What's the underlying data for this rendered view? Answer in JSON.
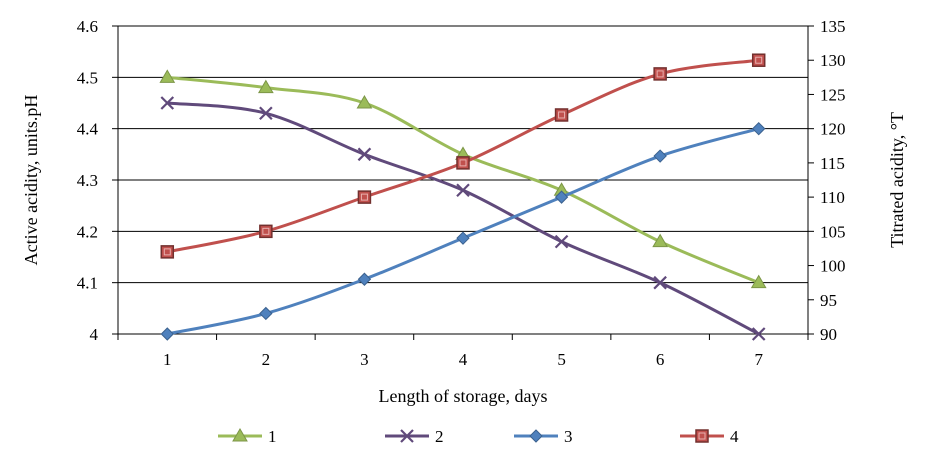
{
  "chart_data": {
    "type": "line",
    "xlabel": "Length of storage, days",
    "ylabel": "Active acidity, units.pH",
    "y2label": "Titrated acidity, °T",
    "categories": [
      "1",
      "2",
      "3",
      "4",
      "5",
      "6",
      "7"
    ],
    "ylim": [
      4,
      4.6
    ],
    "y_ticks": [
      "4",
      "4.1",
      "4.2",
      "4.3",
      "4.4",
      "4.5",
      "4.6"
    ],
    "y2lim": [
      90,
      135
    ],
    "y2_ticks": [
      "90",
      "95",
      "100",
      "105",
      "110",
      "115",
      "120",
      "125",
      "130",
      "135"
    ],
    "grid": true,
    "legend_position": "bottom",
    "series": [
      {
        "name": "1",
        "axis": "left",
        "color": "#9BBB59",
        "marker": "triangle",
        "values": [
          4.5,
          4.48,
          4.45,
          4.35,
          4.28,
          4.18,
          4.1
        ]
      },
      {
        "name": "2",
        "axis": "left",
        "color": "#604A7B",
        "marker": "x",
        "values": [
          4.45,
          4.43,
          4.35,
          4.28,
          4.18,
          4.1,
          4.0
        ]
      },
      {
        "name": "3",
        "axis": "right",
        "color": "#4F81BD",
        "marker": "diamond",
        "values": [
          90,
          93,
          98,
          104,
          110,
          116,
          120
        ]
      },
      {
        "name": "4",
        "axis": "right",
        "color": "#C0504D",
        "marker": "square",
        "values": [
          102,
          105,
          110,
          115,
          122,
          128,
          130
        ]
      }
    ]
  }
}
